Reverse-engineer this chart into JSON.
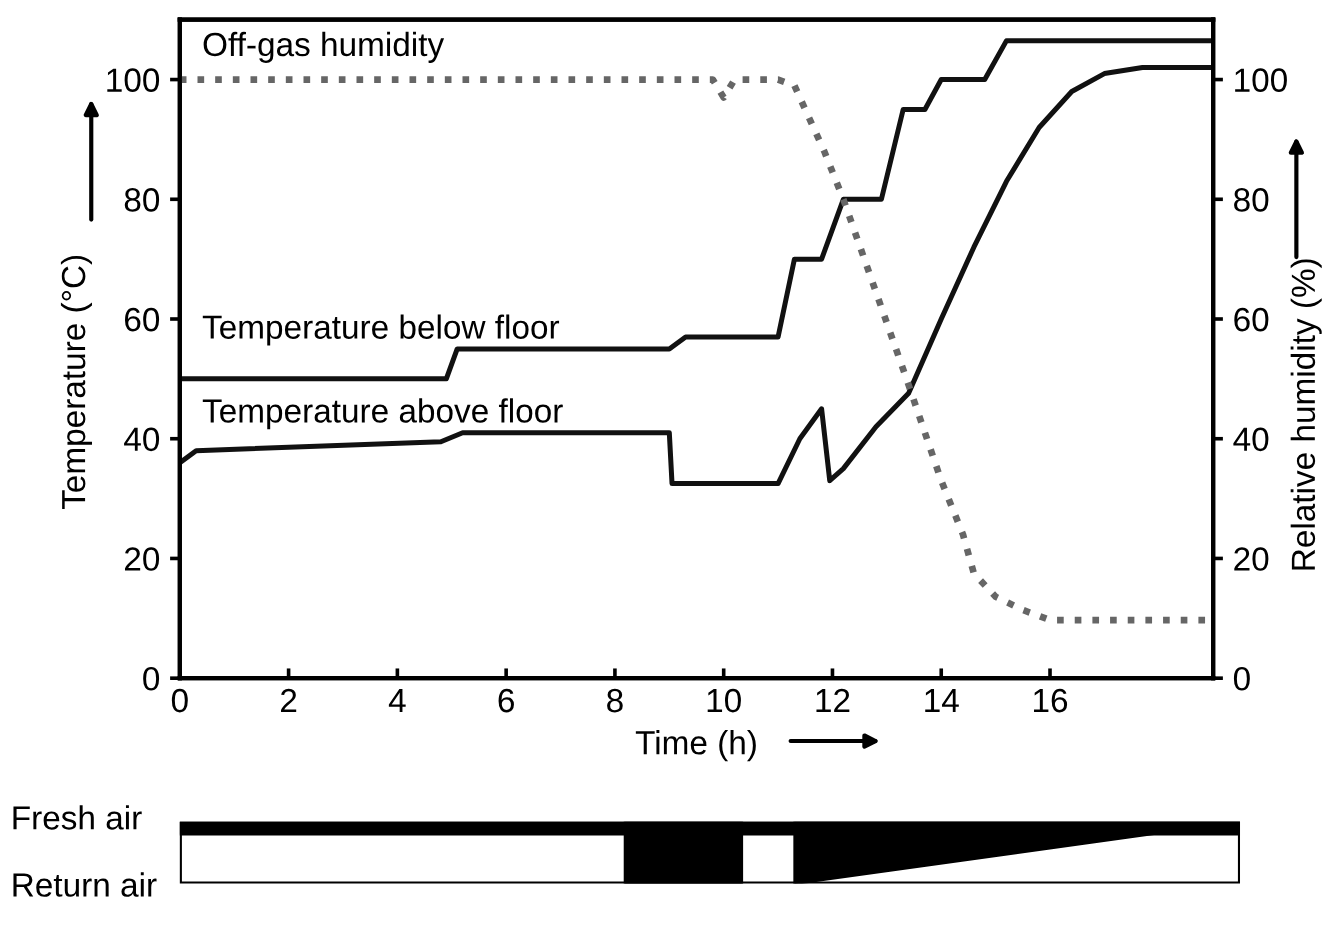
{
  "chart_data": {
    "type": "line",
    "xlabel": "Time (h)",
    "ylabel": "Temperature (°C)",
    "y2label": "Relative humidity (%)",
    "xlim": [
      0,
      19
    ],
    "xticks": [
      0,
      2,
      4,
      6,
      8,
      10,
      12,
      14,
      16
    ],
    "ylim": [
      0,
      110
    ],
    "yticks": [
      0,
      20,
      40,
      60,
      80,
      100
    ],
    "y2lim": [
      0,
      110
    ],
    "y2ticks": [
      0,
      20,
      40,
      60,
      80,
      100
    ],
    "grid": false,
    "legend": false,
    "marker": "none",
    "series": [
      {
        "name": "Off-gas humidity",
        "color": "#666666",
        "axis": "y2",
        "line_style": "dotted",
        "x": [
          0,
          9.8,
          10.0,
          10.2,
          11.0,
          11.3,
          11.85,
          12.2,
          12.8,
          13.4,
          14.0,
          14.4,
          14.6,
          15.0,
          15.5,
          16.0,
          19.0
        ],
        "values": [
          100,
          100,
          97,
          100,
          100,
          99,
          88,
          80,
          64.5,
          49,
          33,
          24,
          17.5,
          13.6,
          11.4,
          9.7,
          9.7
        ]
      },
      {
        "name": "Temperature below floor",
        "color": "#111111",
        "line_style": "solid",
        "x": [
          0,
          4.9,
          5.1,
          9.0,
          9.3,
          11.0,
          11.3,
          11.8,
          12.2,
          12.9,
          13.3,
          13.7,
          14.0,
          14.8,
          15.2,
          19.0
        ],
        "values": [
          50,
          50,
          55,
          55,
          57,
          57,
          70,
          70,
          80,
          80,
          95,
          95,
          100,
          100,
          106.5,
          106.5
        ]
      },
      {
        "name": "Temperature above floor",
        "color": "#111111",
        "line_style": "solid",
        "x": [
          0,
          0.3,
          4.8,
          5.2,
          9.0,
          9.05,
          11.0,
          11.4,
          11.8,
          11.95,
          12.2,
          12.8,
          13.4,
          14.0,
          14.6,
          15.2,
          15.8,
          16.4,
          17.0,
          17.7,
          19.0
        ],
        "values": [
          36,
          38,
          39.5,
          41,
          41,
          32.5,
          32.5,
          40,
          45,
          33,
          35,
          42,
          47.6,
          60,
          72,
          83,
          92,
          98,
          101,
          102,
          102
        ]
      }
    ],
    "annotations": [
      "Fresh air",
      "Return air"
    ]
  }
}
